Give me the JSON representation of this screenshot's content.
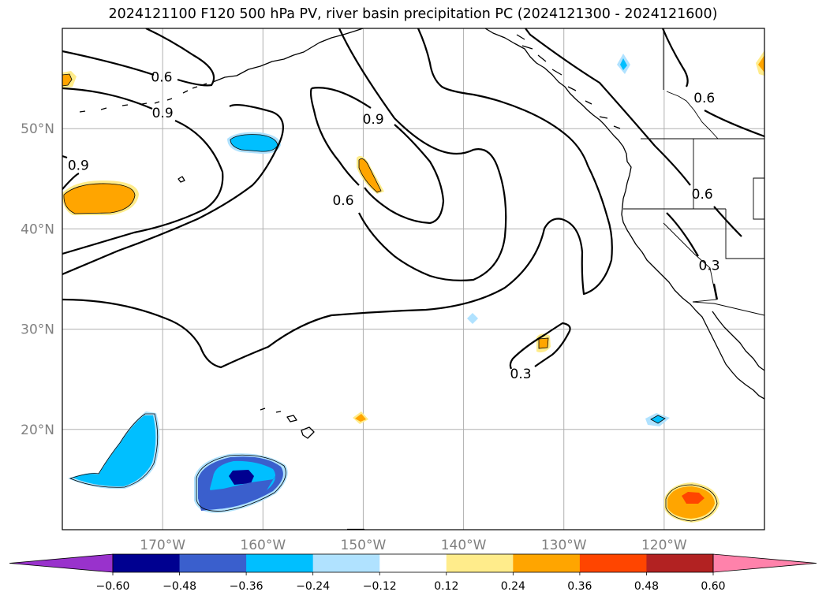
{
  "title": "2024121100 F120 500 hPa PV, river basin precipitation PC (2024121300 - 2024121600)",
  "map": {
    "type": "filled contour map",
    "region": "North Pacific / western North America",
    "projection": "equirectangular",
    "lon_range": [
      -180,
      -110
    ],
    "lat_range": [
      10,
      60
    ],
    "gridlines": true,
    "lon_ticks": [
      {
        "lon": -170,
        "label": "170°W"
      },
      {
        "lon": -160,
        "label": "160°W"
      },
      {
        "lon": -150,
        "label": "150°W"
      },
      {
        "lon": -140,
        "label": "140°W"
      },
      {
        "lon": -130,
        "label": "130°W"
      },
      {
        "lon": -120,
        "label": "120°W"
      }
    ],
    "lat_ticks": [
      {
        "lat": 20,
        "label": "20°N"
      },
      {
        "lat": 30,
        "label": "30°N"
      },
      {
        "lat": 40,
        "label": "40°N"
      },
      {
        "lat": 50,
        "label": "50°N"
      }
    ],
    "pv_contour_labels": [
      {
        "text": "0.6",
        "lon": -170.1,
        "lat": 55.1
      },
      {
        "text": "0.9",
        "lon": -170.0,
        "lat": 51.5
      },
      {
        "text": "0.9",
        "lon": -178.4,
        "lat": 46.3
      },
      {
        "text": "0.9",
        "lon": -149.0,
        "lat": 50.9
      },
      {
        "text": "0.6",
        "lon": -152.0,
        "lat": 42.8
      },
      {
        "text": "0.6",
        "lon": -116.0,
        "lat": 53.0
      },
      {
        "text": "0.6",
        "lon": -116.2,
        "lat": 43.4
      },
      {
        "text": "0.3",
        "lon": -115.5,
        "lat": 36.3
      },
      {
        "text": "0.3",
        "lon": -134.3,
        "lat": 25.5
      }
    ],
    "precip_pc_blobs": [
      {
        "lon": -178.5,
        "lat": 55.5,
        "value": 0.3
      },
      {
        "lon": -174.8,
        "lat": 43.0,
        "value": 0.3
      },
      {
        "lon": -161.5,
        "lat": 48.3,
        "value": -0.3
      },
      {
        "lon": -149.6,
        "lat": 44.7,
        "value": 0.3
      },
      {
        "lon": -132.0,
        "lat": 28.3,
        "value": 0.3
      },
      {
        "lon": -150.2,
        "lat": 20.8,
        "value": 0.2
      },
      {
        "lon": -139.0,
        "lat": 30.9,
        "value": -0.2
      },
      {
        "lon": -120.6,
        "lat": 20.9,
        "value": -0.2
      },
      {
        "lon": -124.0,
        "lat": 56.5,
        "value": -0.2
      },
      {
        "lon": -110.3,
        "lat": 56.9,
        "value": 0.3
      },
      {
        "lon": -172.5,
        "lat": 17.5,
        "value": -0.3
      },
      {
        "lon": -160.5,
        "lat": 15.5,
        "value": -0.45
      },
      {
        "lon": -116.5,
        "lat": 12.5,
        "value": 0.45
      }
    ]
  },
  "colorbar": {
    "ticks": [
      "−0.60",
      "−0.48",
      "−0.36",
      "−0.24",
      "−0.12",
      "0.12",
      "0.24",
      "0.36",
      "0.48",
      "0.60"
    ],
    "colors": {
      "under": "#9932cc",
      "bins": [
        "#000090",
        "#3a5fcd",
        "#00bfff",
        "#b0e2ff",
        "#ffffff",
        "#ffec8b",
        "#ffa500",
        "#ff4500",
        "#b22222"
      ],
      "over": "#ff82ab"
    }
  }
}
